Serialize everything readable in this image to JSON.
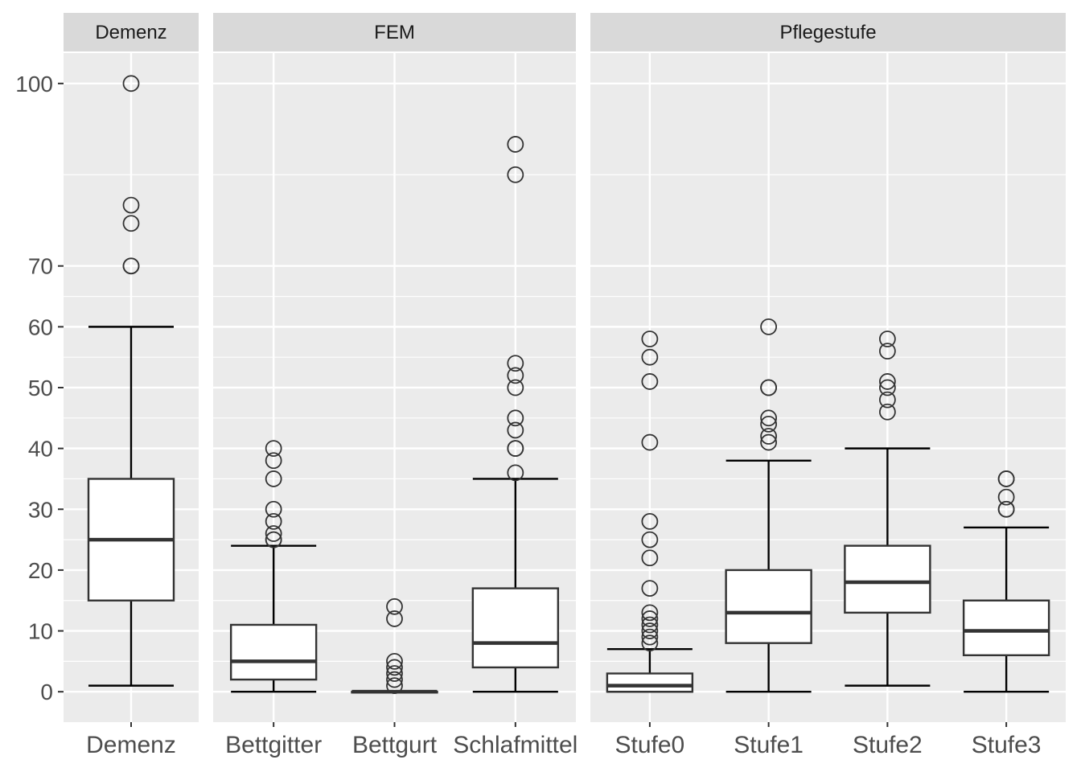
{
  "chart_data": {
    "type": "boxplot",
    "ylim": [
      -5,
      105
    ],
    "yticks": [
      0,
      10,
      20,
      30,
      40,
      50,
      60,
      70,
      100
    ],
    "ytick_labels": [
      "0",
      "10",
      "20",
      "30",
      "40",
      "50",
      "60",
      "70",
      "100"
    ],
    "grid": true,
    "colors": {
      "panel_bg": "#ebebeb",
      "strip_bg": "#d9d9d9",
      "grid": "#ffffff",
      "box_fill": "#ffffff",
      "box_line": "#333333",
      "outlier": "#333333"
    },
    "panels": [
      {
        "strip": "Demenz",
        "categories": [
          {
            "label": "Demenz",
            "q1": 15,
            "median": 25,
            "q3": 35,
            "whisker_low": 1,
            "whisker_high": 60,
            "outliers": [
              70,
              70,
              77,
              80,
              100
            ]
          }
        ]
      },
      {
        "strip": "FEM",
        "categories": [
          {
            "label": "Bettgitter",
            "q1": 2,
            "median": 5,
            "q3": 11,
            "whisker_low": 0,
            "whisker_high": 24,
            "outliers": [
              25,
              25,
              26,
              28,
              30,
              35,
              38,
              40
            ]
          },
          {
            "label": "Bettgurt",
            "q1": 0,
            "median": 0,
            "q3": 0,
            "whisker_low": 0,
            "whisker_high": 0,
            "outliers": [
              1,
              2,
              3,
              4,
              5,
              12,
              14
            ]
          },
          {
            "label": "Schlafmittel",
            "q1": 4,
            "median": 8,
            "q3": 17,
            "whisker_low": 0,
            "whisker_high": 35,
            "outliers": [
              36,
              40,
              40,
              43,
              45,
              50,
              52,
              54,
              85,
              90
            ]
          }
        ]
      },
      {
        "strip": "Pflegestufe",
        "categories": [
          {
            "label": "Stufe0",
            "q1": 0,
            "median": 1,
            "q3": 3,
            "whisker_low": 0,
            "whisker_high": 7,
            "outliers": [
              8,
              9,
              10,
              11,
              12,
              13,
              17,
              22,
              25,
              28,
              41,
              51,
              55,
              58
            ]
          },
          {
            "label": "Stufe1",
            "q1": 8,
            "median": 13,
            "q3": 20,
            "whisker_low": 0,
            "whisker_high": 38,
            "outliers": [
              41,
              42,
              44,
              45,
              50,
              50,
              60
            ]
          },
          {
            "label": "Stufe2",
            "q1": 13,
            "median": 18,
            "q3": 24,
            "whisker_low": 1,
            "whisker_high": 40,
            "outliers": [
              46,
              48,
              50,
              51,
              56,
              58
            ]
          },
          {
            "label": "Stufe3",
            "q1": 6,
            "median": 10,
            "q3": 15,
            "whisker_low": 0,
            "whisker_high": 27,
            "outliers": [
              30,
              30,
              32,
              35,
              35
            ]
          }
        ]
      }
    ]
  }
}
